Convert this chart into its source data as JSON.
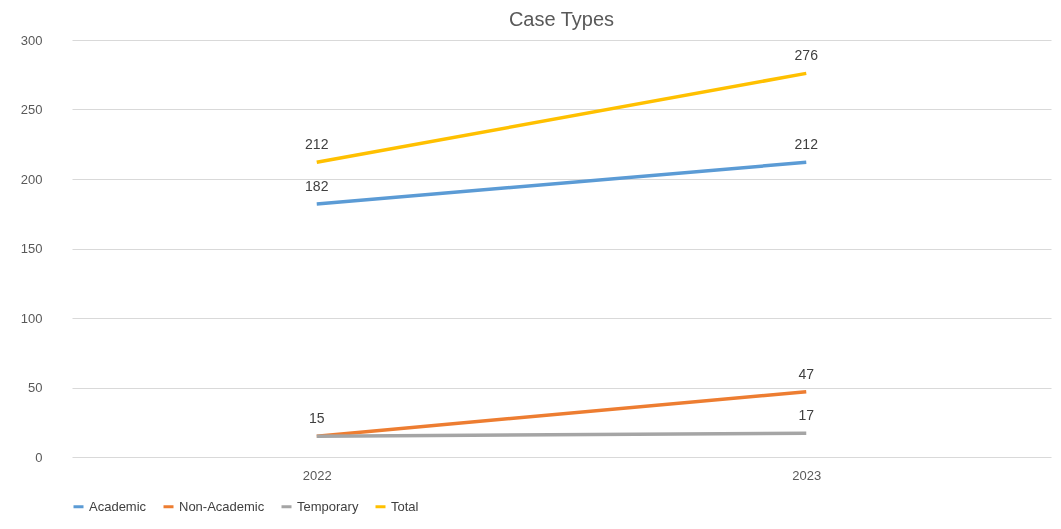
{
  "chart_data": {
    "type": "line",
    "title": "Case Types",
    "categories": [
      "2022",
      "2023"
    ],
    "series": [
      {
        "name": "Academic",
        "color": "#5b9bd5",
        "values": [
          182,
          212
        ],
        "value_labels": [
          "182",
          "212"
        ]
      },
      {
        "name": "Non-Academic",
        "color": "#ed7d31",
        "values": [
          15,
          47
        ],
        "value_labels": [
          "15",
          "47"
        ]
      },
      {
        "name": "Temporary",
        "color": "#a5a5a5",
        "values": [
          15,
          17
        ],
        "value_labels": [
          null,
          "17"
        ]
      },
      {
        "name": "Total",
        "color": "#ffc000",
        "values": [
          212,
          276
        ],
        "value_labels": [
          "212",
          "276"
        ]
      }
    ],
    "ylim": [
      0,
      300
    ],
    "yticks": [
      0,
      50,
      100,
      150,
      200,
      250,
      300
    ],
    "grid": "y",
    "legend": "bottom",
    "marker": "none",
    "line_style": "solid"
  }
}
